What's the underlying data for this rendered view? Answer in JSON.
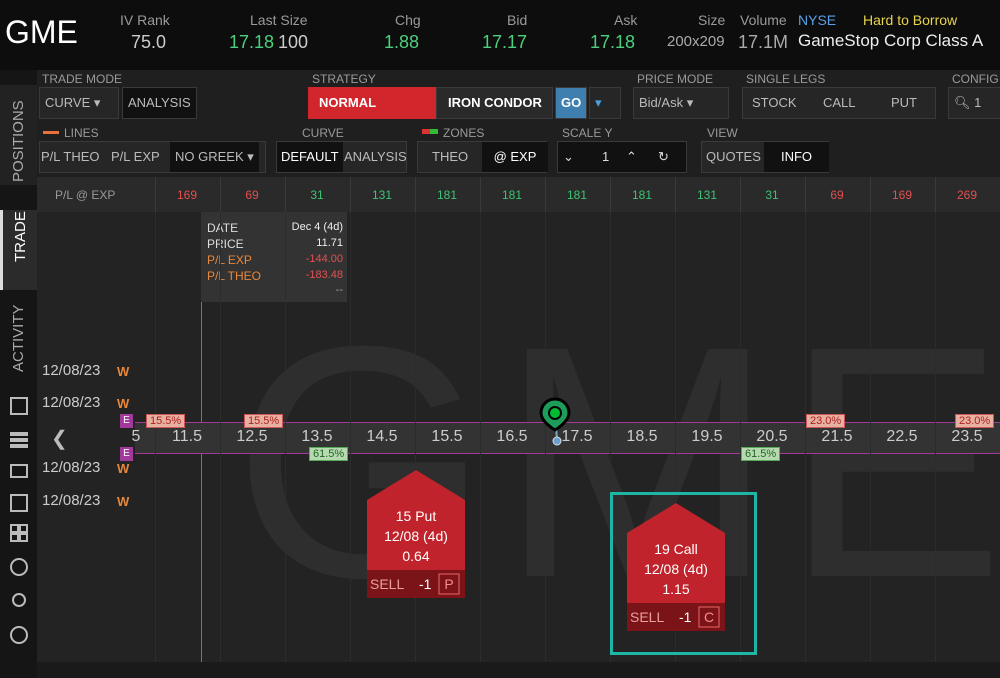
{
  "header": {
    "symbol": "GME",
    "iv_rank_label": "IV Rank",
    "iv_rank": "75.0",
    "last_size_label": "Last Size",
    "last": "17.18",
    "last_size": "100",
    "chg_label": "Chg",
    "chg": "1.88",
    "bid_label": "Bid",
    "bid": "17.17",
    "ask_label": "Ask",
    "ask": "17.18",
    "size_label": "Size",
    "size": "200x209",
    "volume_label": "Volume",
    "volume": "17.1M",
    "exchange": "NYSE",
    "borrow": "Hard to Borrow",
    "company": "GameStop Corp Class A"
  },
  "toolbar": {
    "trade_mode": {
      "label": "TRADE MODE",
      "value": "CURVE",
      "button": "ANALYSIS"
    },
    "strategy": {
      "label": "STRATEGY",
      "normal": "NORMAL",
      "iron_condor": "IRON CONDOR",
      "go": "GO"
    },
    "price_mode": {
      "label": "PRICE MODE",
      "value": "Bid/Ask"
    },
    "single_legs": {
      "label": "SINGLE LEGS",
      "items": [
        "STOCK",
        "CALL",
        "PUT"
      ]
    },
    "config": {
      "label": "CONFIG",
      "value": "1"
    },
    "lines": {
      "label": "LINES",
      "items": [
        "P/L THEO",
        "P/L EXP"
      ],
      "greek": "NO GREEK"
    },
    "curve": {
      "label": "CURVE",
      "items": [
        "DEFAULT",
        "ANALYSIS"
      ]
    },
    "zones": {
      "label": "ZONES",
      "items": [
        "THEO",
        "@ EXP"
      ]
    },
    "scale_y": {
      "label": "SCALE Y",
      "value": "1"
    },
    "view": {
      "label": "VIEW",
      "items": [
        "QUOTES",
        "INFO"
      ]
    }
  },
  "side_tabs": [
    "POSITIONS",
    "TRADE",
    "ACTIVITY"
  ],
  "pl_row": {
    "label": "P/L @ EXP",
    "values": [
      169,
      69,
      31,
      131,
      181,
      181,
      181,
      181,
      131,
      31,
      69,
      169,
      269
    ],
    "colors": [
      "#e25050",
      "#e25050",
      "#3cc474",
      "#3cc474",
      "#3cc474",
      "#3cc474",
      "#3cc474",
      "#3cc474",
      "#3cc474",
      "#3cc474",
      "#e25050",
      "#e25050",
      "#e25050"
    ]
  },
  "tooltip": {
    "rows": [
      [
        "DATE",
        "Dec 4 (4d)"
      ],
      [
        "PRICE",
        "11.71"
      ],
      [
        "P/L EXP",
        "-144.00"
      ],
      [
        "P/L THEO",
        "-183.48"
      ]
    ],
    "footer": "--"
  },
  "chart": {
    "watermark": "GME",
    "dates": [
      "12/08/23",
      "12/08/23",
      "12/08/23",
      "12/08/23"
    ],
    "date_flag": "W",
    "prices": [
      "5",
      "11.5",
      "12.5",
      "13.5",
      "14.5",
      "15.5",
      "16.5",
      "17.5",
      "18.5",
      "19.5",
      "20.5",
      "21.5",
      "22.5",
      "23.5"
    ],
    "upper_pct": [
      "15.5%",
      "15.5%",
      "23.0%",
      "23.0%"
    ],
    "lower_pct": [
      "61.5%",
      "61.5%"
    ],
    "exp_marker": "E"
  },
  "orders": [
    {
      "title": "15 Put",
      "expiry": "12/08 (4d)",
      "price": "0.64",
      "action": "SELL",
      "qty": "-1",
      "kind": "P"
    },
    {
      "title": "19 Call",
      "expiry": "12/08 (4d)",
      "price": "1.15",
      "action": "SELL",
      "qty": "-1",
      "kind": "C"
    }
  ]
}
